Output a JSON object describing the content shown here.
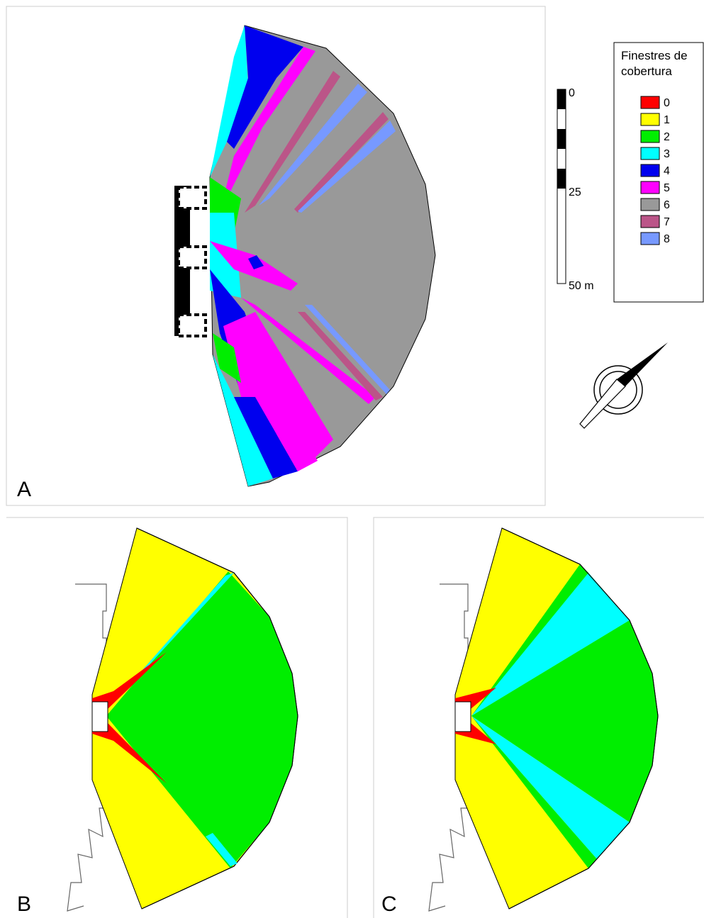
{
  "panels": {
    "a": {
      "letter": "A"
    },
    "b": {
      "letter": "B"
    },
    "c": {
      "letter": "C"
    }
  },
  "legend": {
    "title_line1": "Finestres de",
    "title_line2": "cobertura",
    "items": [
      {
        "label": "0",
        "color": "#ff0000"
      },
      {
        "label": "1",
        "color": "#ffff00"
      },
      {
        "label": "2",
        "color": "#00ee00"
      },
      {
        "label": "3",
        "color": "#00ffff"
      },
      {
        "label": "4",
        "color": "#0000ee"
      },
      {
        "label": "5",
        "color": "#ff00ff"
      },
      {
        "label": "6",
        "color": "#999999"
      },
      {
        "label": "7",
        "color": "#bb5588"
      },
      {
        "label": "8",
        "color": "#7799ff"
      }
    ]
  },
  "scale_bar": {
    "label_start": "0",
    "label_mid": "25",
    "label_end": "50 m"
  },
  "north_arrow": {
    "icon": "north-arrow-icon"
  }
}
